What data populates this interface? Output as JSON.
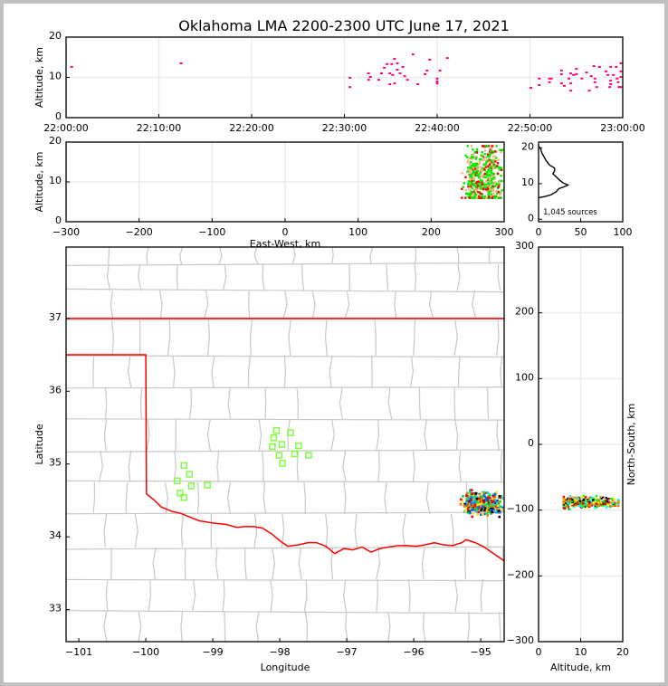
{
  "title": "Oklahoma LMA 2200-2300 UTC June 17, 2021",
  "source_clusters": {
    "projection_center_lon": -97.93,
    "projection_center_lat": 35.26,
    "km_per_deg_lon": 92,
    "km_per_deg_lat": 111,
    "groups": [
      {
        "ew_center": 259,
        "ew_spread": 5,
        "ns_center": -87,
        "ns_spread": 6,
        "alt_center": 10.5,
        "alt_spread": 2.6,
        "count": 220
      },
      {
        "ew_center": 281,
        "ew_spread": 6,
        "ns_center": -90,
        "ns_spread": 6,
        "alt_center": 11.5,
        "alt_spread": 2.8,
        "count": 260
      }
    ],
    "plan_colors": [
      "#1060ff",
      "#00c8ff",
      "#00e040",
      "#ffe000",
      "#ff8000",
      "#ff0000",
      "#000000"
    ],
    "ew_colors": [
      "#00ee00",
      "#00ee00",
      "#ff0000",
      "#ffb080"
    ],
    "ns_colors": [
      "#00ffff",
      "#ffff00",
      "#ff0000",
      "#ff8000",
      "#000000",
      "#00ff00"
    ]
  },
  "chart_data": [
    {
      "id": "time_height",
      "type": "scatter",
      "xlabel": "",
      "ylabel": "Altitude, km",
      "xlim": [
        0,
        60
      ],
      "ylim": [
        0,
        20
      ],
      "x_ticks": [
        0,
        10,
        20,
        30,
        40,
        50,
        60
      ],
      "x_tick_labels": [
        "22:00:00",
        "22:10:00",
        "22:20:00",
        "22:30:00",
        "22:40:00",
        "22:50:00",
        "23:00:00"
      ],
      "y_ticks": [
        0,
        10,
        20
      ],
      "y_tick_labels": [
        "0",
        "10",
        "20"
      ],
      "color": "#ff0080",
      "points": [
        [
          0.6,
          12.6
        ],
        [
          12.4,
          13.5
        ],
        [
          30.6,
          9.9
        ],
        [
          30.6,
          7.6
        ],
        [
          32.6,
          11.0
        ],
        [
          32.6,
          9.4
        ],
        [
          32.8,
          10.1
        ],
        [
          33.7,
          9.4
        ],
        [
          34.0,
          11.0
        ],
        [
          34.3,
          12.4
        ],
        [
          34.6,
          13.3
        ],
        [
          35.1,
          13.3
        ],
        [
          35.4,
          14.6
        ],
        [
          35.7,
          13.5
        ],
        [
          34.9,
          11.0
        ],
        [
          35.2,
          10.6
        ],
        [
          34.9,
          8.3
        ],
        [
          35.4,
          8.5
        ],
        [
          35.7,
          11.9
        ],
        [
          36.0,
          11.0
        ],
        [
          36.3,
          12.6
        ],
        [
          36.5,
          10.3
        ],
        [
          36.8,
          9.4
        ],
        [
          37.4,
          15.7
        ],
        [
          37.9,
          8.3
        ],
        [
          38.7,
          10.8
        ],
        [
          38.9,
          11.7
        ],
        [
          39.2,
          14.4
        ],
        [
          40.0,
          9.7
        ],
        [
          40.0,
          9.0
        ],
        [
          40.0,
          8.5
        ],
        [
          40.3,
          11.7
        ],
        [
          41.1,
          14.8
        ],
        [
          50.1,
          7.4
        ],
        [
          51.0,
          9.7
        ],
        [
          51.0,
          8.1
        ],
        [
          52.1,
          9.7
        ],
        [
          52.3,
          9.7
        ],
        [
          52.1,
          8.8
        ],
        [
          53.4,
          11.7
        ],
        [
          53.4,
          10.8
        ],
        [
          53.4,
          8.5
        ],
        [
          53.7,
          7.9
        ],
        [
          54.2,
          9.7
        ],
        [
          54.4,
          11.0
        ],
        [
          54.4,
          8.5
        ],
        [
          54.4,
          6.7
        ],
        [
          54.7,
          10.6
        ],
        [
          55.0,
          12.1
        ],
        [
          55.0,
          10.8
        ],
        [
          55.6,
          9.7
        ],
        [
          56.1,
          11.2
        ],
        [
          56.4,
          6.7
        ],
        [
          56.6,
          10.3
        ],
        [
          56.9,
          12.8
        ],
        [
          57.0,
          9.7
        ],
        [
          57.0,
          8.8
        ],
        [
          57.2,
          7.6
        ],
        [
          57.5,
          12.6
        ],
        [
          58.2,
          11.5
        ],
        [
          58.4,
          10.6
        ],
        [
          58.7,
          12.6
        ],
        [
          58.7,
          9.2
        ],
        [
          58.7,
          8.3
        ],
        [
          58.6,
          7.6
        ],
        [
          59.0,
          10.6
        ],
        [
          59.3,
          12.6
        ],
        [
          59.4,
          9.7
        ],
        [
          59.5,
          8.8
        ],
        [
          59.8,
          13.5
        ],
        [
          59.8,
          11.5
        ],
        [
          59.8,
          7.6
        ],
        [
          59.8,
          10.1
        ],
        [
          59.6,
          7.6
        ]
      ]
    },
    {
      "id": "ew_height",
      "type": "scatter",
      "xlabel": "East-West, km",
      "ylabel": "Altitude, km",
      "xlim": [
        -300,
        300
      ],
      "ylim": [
        0,
        20
      ],
      "x_ticks": [
        -300,
        -200,
        -100,
        0,
        100,
        200,
        300
      ],
      "x_tick_labels": [
        "−300",
        "−200",
        "−100",
        "0",
        "100",
        "200",
        "300"
      ],
      "y_ticks": [
        0,
        10,
        20
      ],
      "y_tick_labels": [
        "0",
        "10",
        "20"
      ]
    },
    {
      "id": "alt_histogram",
      "type": "line",
      "xlim": [
        0,
        100
      ],
      "ylim": [
        -0.7,
        21.7
      ],
      "x_ticks": [
        0,
        50,
        100
      ],
      "x_tick_labels": [
        "0",
        "50",
        "100"
      ],
      "y_ticks": [
        0,
        10,
        20
      ],
      "y_tick_labels": [
        "0",
        "10",
        "20"
      ],
      "annotation": "1,045 sources",
      "profile": [
        [
          0,
          20.5
        ],
        [
          2,
          20.0
        ],
        [
          3,
          19.4
        ],
        [
          4,
          18.6
        ],
        [
          6,
          17.75
        ],
        [
          9,
          16.5
        ],
        [
          13,
          15.25
        ],
        [
          19,
          14.4
        ],
        [
          19,
          13.6
        ],
        [
          17,
          12.75
        ],
        [
          21,
          11.9
        ],
        [
          25,
          11.0
        ],
        [
          29,
          10.25
        ],
        [
          35,
          9.6
        ],
        [
          30,
          9.1
        ],
        [
          24,
          8.6
        ],
        [
          21,
          7.75
        ],
        [
          15,
          6.9
        ],
        [
          8,
          6.4
        ],
        [
          1,
          6.1
        ],
        [
          0,
          5.9
        ]
      ]
    },
    {
      "id": "plan_view",
      "type": "scatter",
      "xlabel": "Longitude",
      "ylabel": "Latitude",
      "xlim": [
        -101.19,
        -94.65
      ],
      "ylim": [
        32.56,
        37.98
      ],
      "x_ticks": [
        -101,
        -100,
        -99,
        -98,
        -97,
        -96,
        -95
      ],
      "x_tick_labels": [
        "−101",
        "−100",
        "−99",
        "−98",
        "−97",
        "−96",
        "−95"
      ],
      "y_ticks": [
        33,
        34,
        35,
        36,
        37
      ],
      "y_tick_labels": [
        "33",
        "34",
        "35",
        "36",
        "37"
      ],
      "station_color": "#80ff40",
      "border_color": "#ff0000",
      "stations": [
        [
          -98.05,
          35.46
        ],
        [
          -97.84,
          35.43
        ],
        [
          -98.09,
          35.36
        ],
        [
          -97.97,
          35.27
        ],
        [
          -98.11,
          35.24
        ],
        [
          -97.72,
          35.25
        ],
        [
          -97.78,
          35.14
        ],
        [
          -97.57,
          35.12
        ],
        [
          -98.01,
          35.12
        ],
        [
          -97.96,
          35.01
        ],
        [
          -99.43,
          34.98
        ],
        [
          -99.35,
          34.86
        ],
        [
          -99.53,
          34.77
        ],
        [
          -99.32,
          34.7
        ],
        [
          -99.08,
          34.71
        ],
        [
          -99.49,
          34.6
        ],
        [
          -99.43,
          34.54
        ]
      ],
      "border": [
        [
          -101.19,
          36.5
        ],
        [
          -100.0,
          36.5
        ],
        [
          -99.99,
          34.59
        ],
        [
          -99.88,
          34.51
        ],
        [
          -99.77,
          34.41
        ],
        [
          -99.61,
          34.35
        ],
        [
          -99.47,
          34.32
        ],
        [
          -99.34,
          34.27
        ],
        [
          -99.2,
          34.22
        ],
        [
          -99.0,
          34.19
        ],
        [
          -98.8,
          34.17
        ],
        [
          -98.64,
          34.13
        ],
        [
          -98.53,
          34.14
        ],
        [
          -98.39,
          34.14
        ],
        [
          -98.26,
          34.12
        ],
        [
          -98.12,
          34.04
        ],
        [
          -97.99,
          33.94
        ],
        [
          -97.88,
          33.87
        ],
        [
          -97.72,
          33.89
        ],
        [
          -97.58,
          33.92
        ],
        [
          -97.45,
          33.92
        ],
        [
          -97.31,
          33.87
        ],
        [
          -97.18,
          33.77
        ],
        [
          -97.04,
          33.84
        ],
        [
          -96.91,
          33.82
        ],
        [
          -96.77,
          33.86
        ],
        [
          -96.64,
          33.79
        ],
        [
          -96.5,
          33.84
        ],
        [
          -96.37,
          33.86
        ],
        [
          -96.23,
          33.88
        ],
        [
          -96.1,
          33.88
        ],
        [
          -95.96,
          33.87
        ],
        [
          -95.83,
          33.89
        ],
        [
          -95.69,
          33.92
        ],
        [
          -95.56,
          33.89
        ],
        [
          -95.42,
          33.88
        ],
        [
          -95.28,
          33.92
        ],
        [
          -95.22,
          33.96
        ],
        [
          -95.08,
          33.92
        ],
        [
          -94.95,
          33.86
        ],
        [
          -94.81,
          33.77
        ],
        [
          -94.65,
          33.67
        ]
      ],
      "north_line": [
        [
          -101.19,
          37.0
        ],
        [
          -94.65,
          37.0
        ]
      ]
    },
    {
      "id": "ns_height",
      "type": "scatter",
      "xlabel": "Altitude, km",
      "ylabel": "North-South, km",
      "xlim": [
        0,
        20
      ],
      "ylim": [
        -300,
        300
      ],
      "x_ticks": [
        0,
        10,
        20
      ],
      "x_tick_labels": [
        "0",
        "10",
        "20"
      ],
      "y_ticks": [
        -300,
        -200,
        -100,
        0,
        100,
        200,
        300
      ],
      "y_tick_labels": [
        "−300",
        "−200",
        "−100",
        "0",
        "100",
        "200",
        "300"
      ]
    }
  ]
}
